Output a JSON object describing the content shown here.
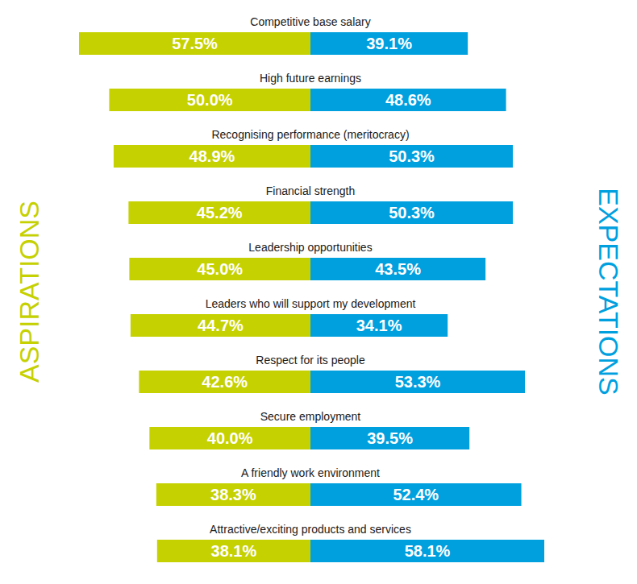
{
  "chart_data": {
    "type": "bar",
    "orientation": "horizontal",
    "categories": [
      "Competitive base salary",
      "High future earnings",
      "Recognising performance (meritocracy)",
      "Financial strength",
      "Leadership opportunities",
      "Leaders who will support my development",
      "Respect for its people",
      "Secure employment",
      "A friendly work environment",
      "Attractive/exciting products and services"
    ],
    "series": [
      {
        "name": "ASPIRATIONS",
        "color": "#c5d100",
        "values": [
          57.5,
          50.0,
          48.9,
          45.2,
          45.0,
          44.7,
          42.6,
          40.0,
          38.3,
          38.1
        ],
        "value_labels": [
          "57.5%",
          "50.0%",
          "48.9%",
          "45.2%",
          "45.0%",
          "44.7%",
          "42.6%",
          "40.0%",
          "38.3%",
          "38.1%"
        ]
      },
      {
        "name": "EXPECTATIONS",
        "color": "#00a0df",
        "values": [
          39.1,
          48.6,
          50.3,
          50.3,
          43.5,
          34.1,
          53.3,
          39.5,
          52.4,
          58.1
        ],
        "value_labels": [
          "39.1%",
          "48.6%",
          "50.3%",
          "50.3%",
          "43.5%",
          "34.1%",
          "53.3%",
          "39.5%",
          "52.4%",
          "58.1%"
        ]
      }
    ],
    "data_labels": true,
    "tick_labels": false
  }
}
